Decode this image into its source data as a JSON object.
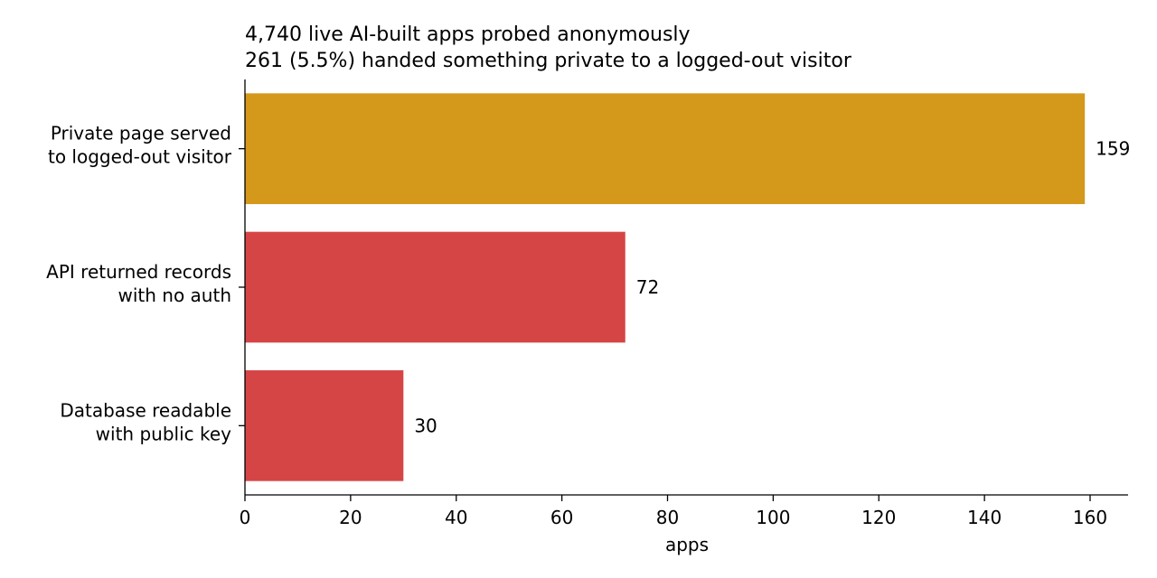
{
  "chart_data": {
    "type": "bar",
    "orientation": "horizontal",
    "title": [
      "4,740 live AI-built apps probed anonymously",
      "261 (5.5%) handed something private to a logged-out visitor"
    ],
    "categories": [
      [
        "Private page served",
        "to logged-out visitor"
      ],
      [
        "API returned records",
        "with no auth"
      ],
      [
        "Database readable",
        "with public key"
      ]
    ],
    "values": [
      159,
      72,
      30
    ],
    "value_labels": [
      "159",
      "72",
      "30"
    ],
    "colors": [
      "#d4991b",
      "#d64545",
      "#d64545"
    ],
    "xlabel": "apps",
    "ylabel": "",
    "xlim": [
      0,
      167
    ],
    "xticks": [
      0,
      20,
      40,
      60,
      80,
      100,
      120,
      140,
      160
    ],
    "grid": false,
    "legend": "none"
  }
}
